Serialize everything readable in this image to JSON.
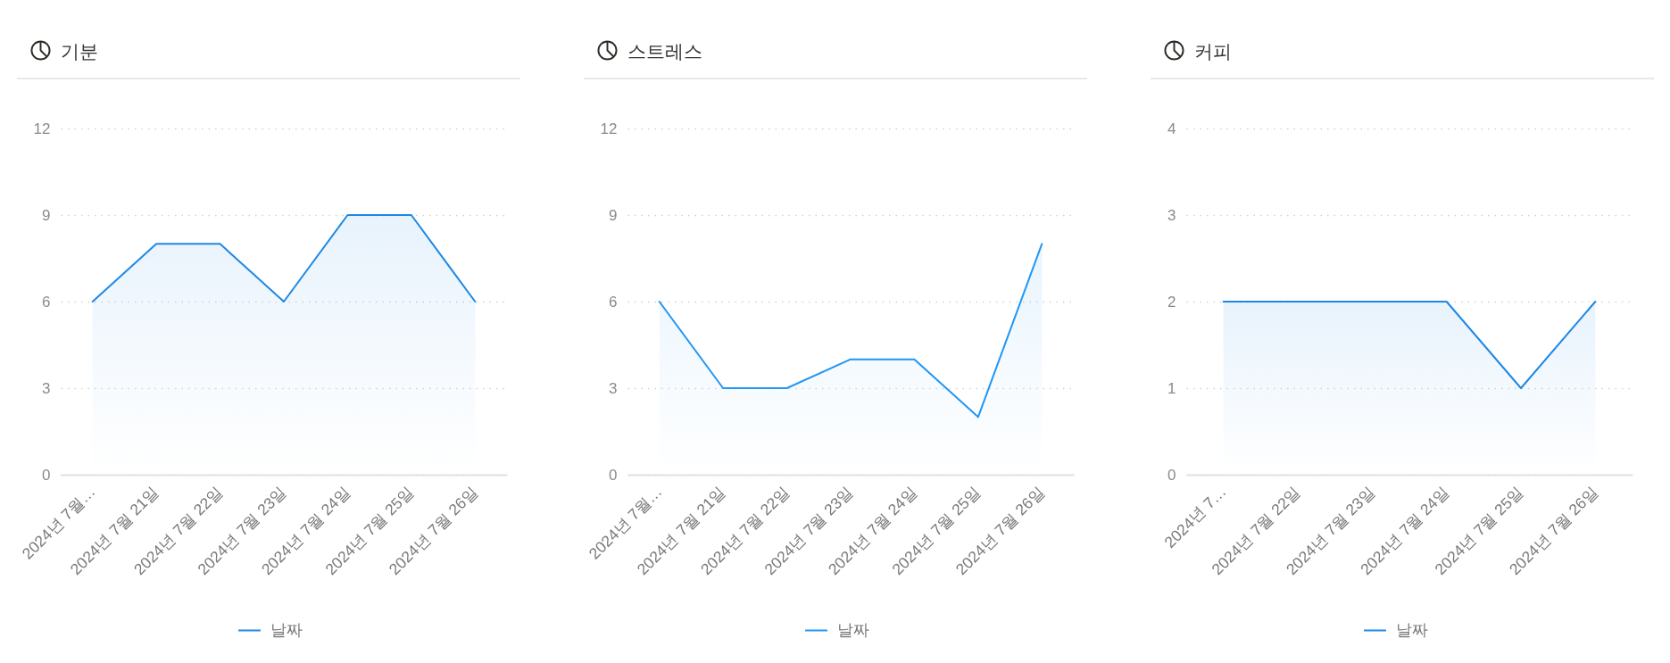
{
  "chart_data": [
    {
      "type": "area",
      "title": "기분",
      "categories": [
        "2024년 7월…",
        "2024년 7월 21일",
        "2024년 7월 22일",
        "2024년 7월 23일",
        "2024년 7월 24일",
        "2024년 7월 25일",
        "2024년 7월 26일"
      ],
      "series": [
        {
          "name": "날짜",
          "color": "#1e88e5",
          "values": [
            6,
            8,
            8,
            6,
            9,
            9,
            6
          ]
        }
      ],
      "ylim": [
        0,
        12
      ],
      "yticks": [
        0,
        3,
        6,
        9,
        12
      ],
      "grid": "y",
      "legend": "bottom"
    },
    {
      "type": "area",
      "title": "스트레스",
      "categories": [
        "2024년 7월…",
        "2024년 7월 21일",
        "2024년 7월 22일",
        "2024년 7월 23일",
        "2024년 7월 24일",
        "2024년 7월 25일",
        "2024년 7월 26일"
      ],
      "series": [
        {
          "name": "날짜",
          "color": "#2196f3",
          "values": [
            6,
            3,
            3,
            4,
            4,
            2,
            8
          ]
        }
      ],
      "ylim": [
        0,
        12
      ],
      "yticks": [
        0,
        3,
        6,
        9,
        12
      ],
      "grid": "y",
      "legend": "bottom"
    },
    {
      "type": "area",
      "title": "커피",
      "categories": [
        "2024년 7…",
        "2024년 7월 22일",
        "2024년 7월 23일",
        "2024년 7월 24일",
        "2024년 7월 25일",
        "2024년 7월 26일"
      ],
      "series": [
        {
          "name": "날짜",
          "color": "#1e88e5",
          "values": [
            2,
            2,
            2,
            2,
            1,
            2
          ]
        }
      ],
      "ylim": [
        0,
        4
      ],
      "yticks": [
        0,
        1,
        2,
        3,
        4
      ],
      "grid": "y",
      "legend": "bottom"
    }
  ]
}
